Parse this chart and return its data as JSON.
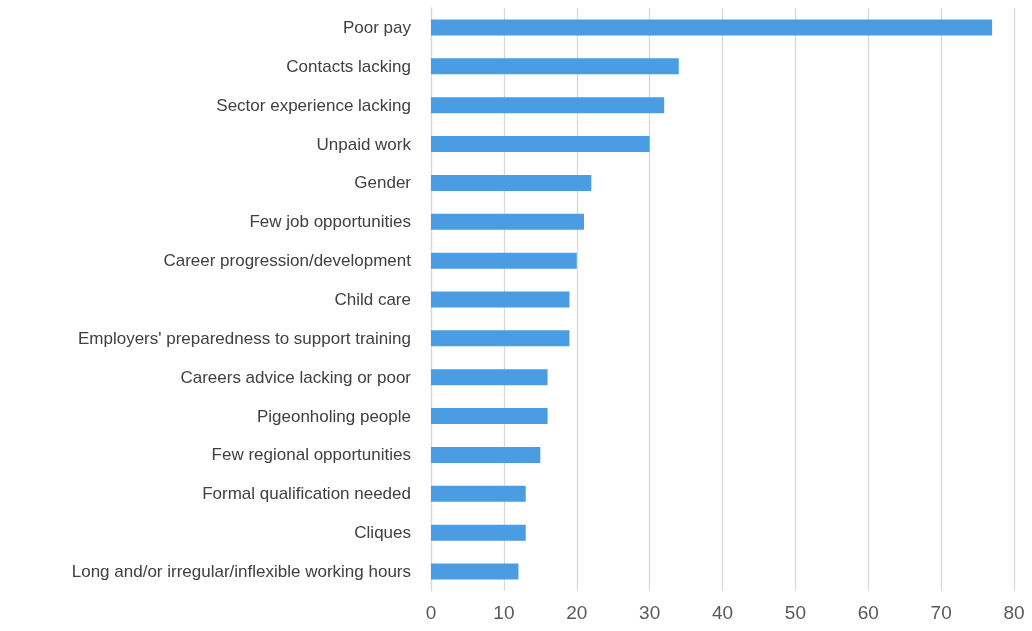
{
  "chart_data": {
    "type": "bar",
    "orientation": "horizontal",
    "categories": [
      "Poor pay",
      "Contacts lacking",
      "Sector experience lacking",
      "Unpaid work",
      "Gender",
      "Few job opportunities",
      "Career progression/development",
      "Child care",
      "Employers' preparedness to support training",
      "Careers advice lacking or poor",
      "Pigeonholing people",
      "Few regional opportunities",
      "Formal qualification needed",
      "Cliques",
      "Long and/or irregular/inflexible working hours"
    ],
    "values": [
      77,
      34,
      32,
      30,
      22,
      21,
      20,
      19,
      19,
      16,
      16,
      15,
      13,
      13,
      12
    ],
    "color": "#4a9de2",
    "xlim": [
      0,
      80
    ],
    "xticks": [
      0,
      10,
      20,
      30,
      40,
      50,
      60,
      70,
      80
    ],
    "grid": "x"
  }
}
